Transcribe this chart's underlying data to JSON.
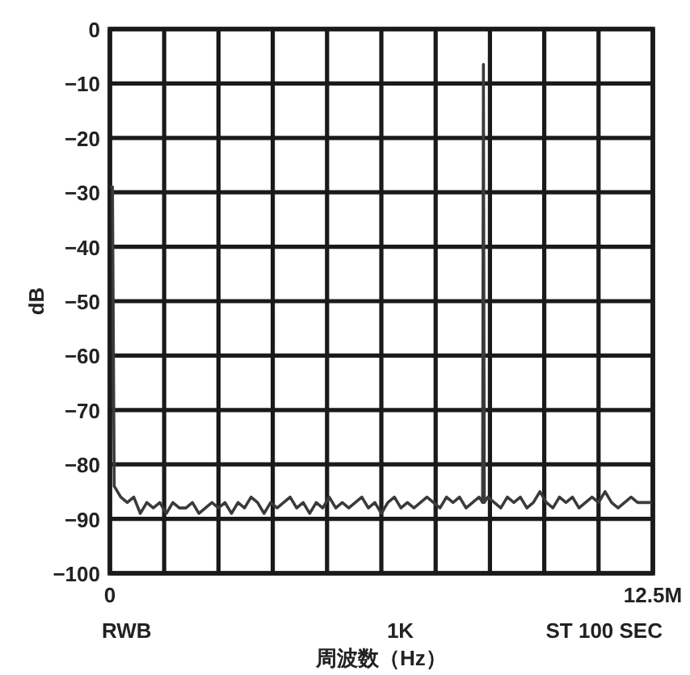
{
  "chart_data": {
    "type": "line",
    "xlabel": "周波数（Hz）",
    "ylabel": "dB",
    "annotations": [
      "RWB",
      "1K",
      "ST 100 SEC"
    ],
    "xlim": [
      0,
      12.5
    ],
    "ylim": [
      -100,
      0
    ],
    "xticks": [
      {
        "value": 0,
        "label": "0"
      },
      {
        "value": 1.25,
        "label": null
      },
      {
        "value": 2.5,
        "label": null
      },
      {
        "value": 3.75,
        "label": null
      },
      {
        "value": 5,
        "label": null
      },
      {
        "value": 6.25,
        "label": null
      },
      {
        "value": 7.5,
        "label": null
      },
      {
        "value": 8.75,
        "label": null
      },
      {
        "value": 10,
        "label": null
      },
      {
        "value": 11.25,
        "label": null
      },
      {
        "value": 12.5,
        "label": "12.5M"
      }
    ],
    "yticks": [
      {
        "value": 0,
        "label": "0"
      },
      {
        "value": -10,
        "label": "−10"
      },
      {
        "value": -20,
        "label": "−20"
      },
      {
        "value": -30,
        "label": "−30"
      },
      {
        "value": -40,
        "label": "−40"
      },
      {
        "value": -50,
        "label": "−50"
      },
      {
        "value": -60,
        "label": "−60"
      },
      {
        "value": -70,
        "label": "−70"
      },
      {
        "value": -80,
        "label": "−80"
      },
      {
        "value": -90,
        "label": "−90"
      },
      {
        "value": -100,
        "label": "−100"
      }
    ],
    "grid": true,
    "marker": "none",
    "line_style": "solid",
    "series": [
      {
        "color": "#3a3a3a",
        "x": [
          0.03,
          0.06,
          0.1,
          0.25,
          0.4,
          0.55,
          0.7,
          0.85,
          1.0,
          1.15,
          1.3,
          1.45,
          1.6,
          1.75,
          1.9,
          2.05,
          2.2,
          2.35,
          2.5,
          2.65,
          2.8,
          2.95,
          3.1,
          3.25,
          3.4,
          3.55,
          3.7,
          3.85,
          4.0,
          4.15,
          4.3,
          4.45,
          4.6,
          4.75,
          4.9,
          5.05,
          5.2,
          5.35,
          5.5,
          5.65,
          5.8,
          5.95,
          6.1,
          6.25,
          6.4,
          6.55,
          6.7,
          6.85,
          7.0,
          7.15,
          7.3,
          7.45,
          7.6,
          7.75,
          7.9,
          8.05,
          8.2,
          8.35,
          8.5,
          8.58,
          8.6,
          8.62,
          8.7,
          8.85,
          9.0,
          9.15,
          9.3,
          9.45,
          9.6,
          9.75,
          9.9,
          10.05,
          10.2,
          10.35,
          10.5,
          10.65,
          10.8,
          10.95,
          11.1,
          11.25,
          11.4,
          11.55,
          11.7,
          11.85,
          12.0,
          12.15,
          12.3,
          12.45
        ],
        "values": [
          -29,
          -29,
          -84,
          -86,
          -87,
          -86,
          -89,
          -87,
          -88,
          -87,
          -89,
          -87,
          -88,
          -88,
          -87,
          -89,
          -88,
          -87,
          -88,
          -87,
          -89,
          -87,
          -88,
          -86,
          -87,
          -89,
          -87,
          -88,
          -87,
          -86,
          -88,
          -87,
          -89,
          -87,
          -88,
          -86,
          -88,
          -87,
          -88,
          -87,
          -86,
          -88,
          -87,
          -89,
          -87,
          -86,
          -88,
          -87,
          -88,
          -87,
          -86,
          -87,
          -88,
          -86,
          -87,
          -86,
          -88,
          -87,
          -86,
          -87,
          -6.5,
          -87,
          -86,
          -87,
          -88,
          -86,
          -87,
          -86,
          -88,
          -87,
          -85,
          -87,
          -88,
          -86,
          -87,
          -86,
          -88,
          -87,
          -86,
          -87,
          -85,
          -87,
          -88,
          -87,
          -86,
          -87,
          -87,
          -87
        ]
      }
    ]
  }
}
